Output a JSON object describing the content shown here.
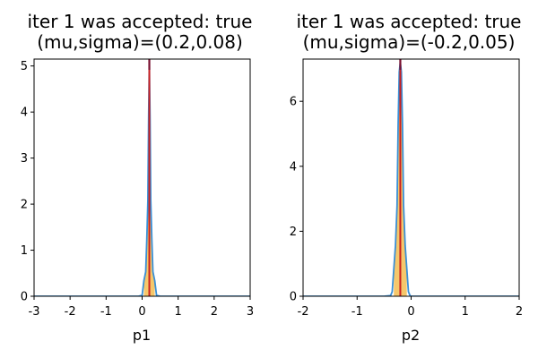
{
  "chart_data": [
    {
      "type": "line",
      "title_line1": "iter 1 was accepted: true",
      "title_line2": "(mu,sigma)=(0.2,0.08)",
      "xlabel": "p1",
      "ylabel": "",
      "xlim": [
        -3,
        3
      ],
      "ylim": [
        0,
        5.15
      ],
      "xticks": [
        -3,
        -2,
        -1,
        0,
        1,
        2,
        3
      ],
      "xtick_labels": [
        "-3",
        "-2",
        "-1",
        "0",
        "1",
        "2",
        "3"
      ],
      "yticks": [
        0,
        1,
        2,
        3,
        4,
        5
      ],
      "ytick_labels": [
        "0",
        "1",
        "2",
        "3",
        "4",
        "5"
      ],
      "grid": false,
      "series": [
        {
          "kind": "density-curve",
          "x": [
            -3.0,
            -2.0,
            -1.0,
            -0.1,
            0.0,
            0.05,
            0.1,
            0.13,
            0.16,
            0.18,
            0.2,
            0.22,
            0.24,
            0.27,
            0.3,
            0.35,
            0.4,
            0.5,
            1.0,
            2.0,
            3.0
          ],
          "y": [
            0,
            0,
            0,
            0,
            0.02,
            0.34,
            0.53,
            1.23,
            2.08,
            3.89,
            5.1,
            3.89,
            2.08,
            1.23,
            0.53,
            0.34,
            0.02,
            0,
            0,
            0,
            0
          ],
          "color": "#3a8fd6"
        },
        {
          "kind": "filled-band",
          "x": [
            0.05,
            0.1,
            0.13,
            0.16,
            0.18,
            0.2,
            0.22,
            0.24,
            0.27,
            0.3,
            0.35
          ],
          "y": [
            0.34,
            0.53,
            1.23,
            2.08,
            3.89,
            5.1,
            3.89,
            2.08,
            1.23,
            0.53,
            0.34
          ],
          "color": "#f5c76b"
        },
        {
          "kind": "vertical-line",
          "x": 0.2,
          "color": "#cc1f1f"
        },
        {
          "kind": "vertical-line-top",
          "x": 0.2,
          "color": "#7a1030"
        }
      ]
    },
    {
      "type": "line",
      "title_line1": "iter 1 was accepted: true",
      "title_line2": "(mu,sigma)=(-0.2,0.05)",
      "xlabel": "p2",
      "ylabel": "",
      "xlim": [
        -2,
        2
      ],
      "ylim": [
        0,
        7.3
      ],
      "xticks": [
        -2,
        -1,
        0,
        1,
        2
      ],
      "xtick_labels": [
        "-2",
        "-1",
        "0",
        "1",
        "2"
      ],
      "yticks": [
        0,
        2,
        4,
        6
      ],
      "ytick_labels": [
        "0",
        "2",
        "4",
        "6"
      ],
      "grid": false,
      "series": [
        {
          "kind": "density-curve",
          "x": [
            -2.0,
            -1.0,
            -0.5,
            -0.38,
            -0.35,
            -0.32,
            -0.29,
            -0.26,
            -0.24,
            -0.22,
            -0.2,
            -0.18,
            -0.16,
            -0.14,
            -0.11,
            -0.08,
            -0.05,
            -0.02,
            0.0,
            1.0,
            2.0
          ],
          "y": [
            0,
            0,
            0,
            0.02,
            0.14,
            0.85,
            1.55,
            2.8,
            5.3,
            6.9,
            7.2,
            6.9,
            5.3,
            2.8,
            1.55,
            0.85,
            0.14,
            0.02,
            0,
            0,
            0
          ],
          "color": "#3a8fd6"
        },
        {
          "kind": "filled-band",
          "x": [
            -0.32,
            -0.29,
            -0.26,
            -0.24,
            -0.22,
            -0.2,
            -0.18,
            -0.16,
            -0.14,
            -0.11,
            -0.08
          ],
          "y": [
            0.85,
            1.55,
            2.8,
            5.3,
            6.9,
            7.2,
            6.9,
            5.3,
            2.8,
            1.55,
            0.85
          ],
          "color": "#f5c76b"
        },
        {
          "kind": "vertical-line",
          "x": -0.2,
          "color": "#cc1f1f"
        },
        {
          "kind": "vertical-line-top",
          "x": -0.2,
          "color": "#7a1030"
        }
      ]
    }
  ]
}
